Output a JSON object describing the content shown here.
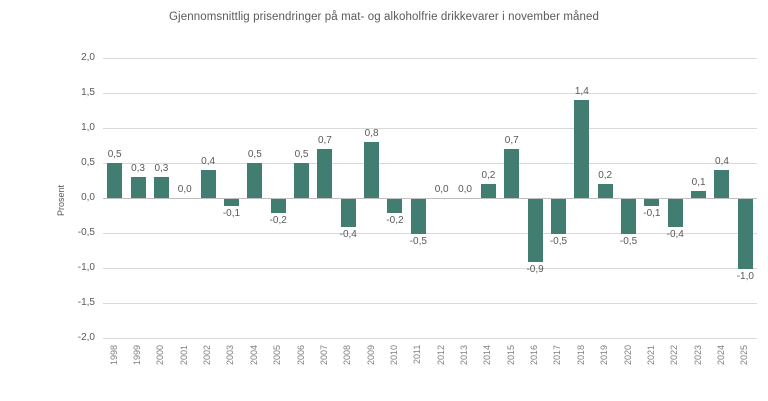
{
  "chart_data": {
    "type": "bar",
    "title": "Gjennomsnittlig prisendringer på mat- og alkoholfrie drikkevarer i november måned",
    "xlabel": "",
    "ylabel": "Prosent",
    "categories": [
      "1998",
      "1999",
      "2000",
      "2001",
      "2002",
      "2003",
      "2004",
      "2005",
      "2006",
      "2007",
      "2008",
      "2009",
      "2010",
      "2011",
      "2012",
      "2013",
      "2014",
      "2015",
      "2016",
      "2017",
      "2018",
      "2019",
      "2020",
      "2021",
      "2022",
      "2023",
      "2024",
      "2025"
    ],
    "values": [
      0.5,
      0.3,
      0.3,
      0.0,
      0.4,
      -0.1,
      0.5,
      -0.2,
      0.5,
      0.7,
      -0.4,
      0.8,
      -0.2,
      -0.5,
      0.0,
      0.0,
      0.2,
      0.7,
      -0.9,
      -0.5,
      1.4,
      0.2,
      -0.5,
      -0.1,
      -0.4,
      0.1,
      0.4,
      -1.0
    ],
    "value_labels": [
      "0,5",
      "0,3",
      "0,3",
      "0,0",
      "0,4",
      "-0,1",
      "0,5",
      "-0,2",
      "0,5",
      "0,7",
      "-0,4",
      "0,8",
      "-0,2",
      "-0,5",
      "0,0",
      "0,0",
      "0,2",
      "0,7",
      "-0,9",
      "-0,5",
      "1,4",
      "0,2",
      "-0,5",
      "-0,1",
      "-0,4",
      "0,1",
      "0,4",
      "-1,0"
    ],
    "ylim": [
      -2.0,
      2.0
    ],
    "yticks": [
      2.0,
      1.5,
      1.0,
      0.5,
      0.0,
      -0.5,
      -1.0,
      -1.5,
      -2.0
    ],
    "ytick_labels": [
      "2,0",
      "1,5",
      "1,0",
      "0,5",
      "0,0",
      "-0,5",
      "-1,0",
      "-1,5",
      "-2,0"
    ],
    "decimal_separator": ",",
    "grid": true,
    "legend": "none",
    "colors": {
      "bar": "#417d70",
      "gridline": "#d9d9d9",
      "zero_line": "#bfbfbf",
      "title_text": "#595959",
      "label_text": "#595959",
      "tick_text": "#7f7f7f",
      "background": "#ffffff"
    }
  }
}
